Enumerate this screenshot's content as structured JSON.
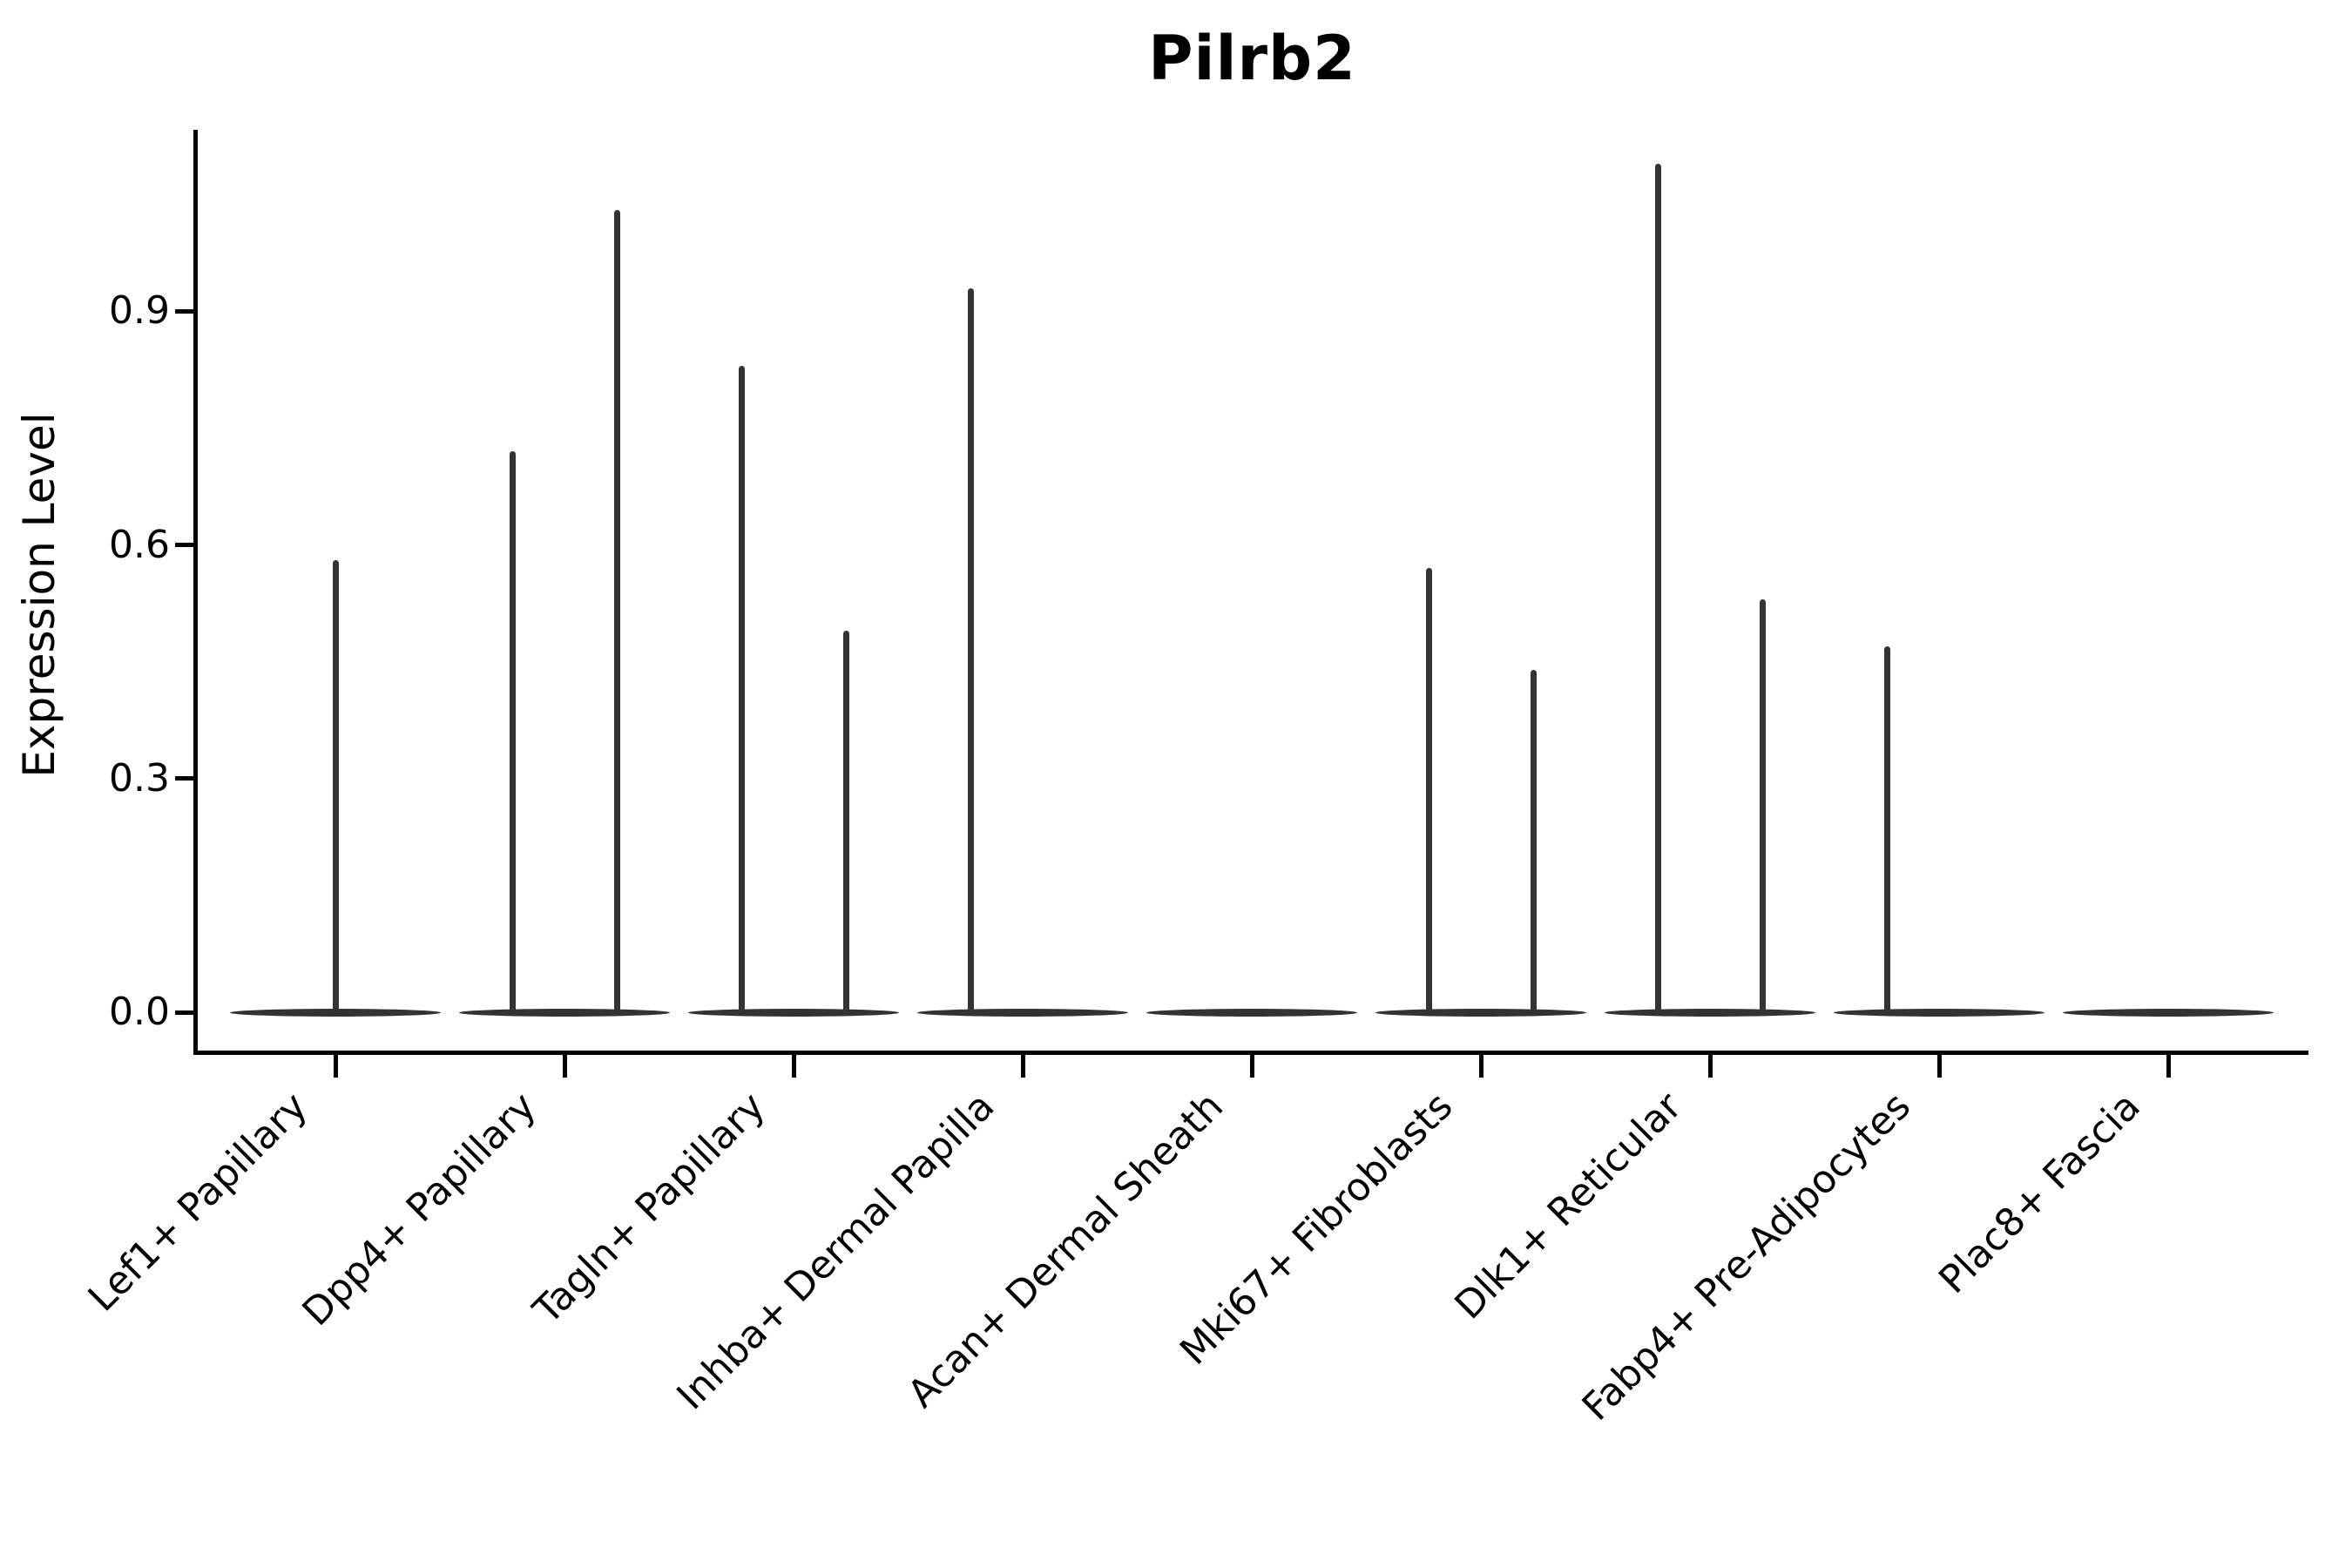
{
  "title": "Pilrb2",
  "y_axis": {
    "label": "Expression Level",
    "tick_labels": [
      "0.0",
      "0.3",
      "0.6",
      "0.9"
    ],
    "tick_values": [
      0.0,
      0.3,
      0.6,
      0.9
    ]
  },
  "colors": {
    "violin": "#333333",
    "axis": "#000000",
    "text": "#000000",
    "background": "#ffffff"
  },
  "chart_data": {
    "type": "violin",
    "title": "Pilrb2",
    "xlabel": "",
    "ylabel": "Expression Level",
    "ylim": [
      0,
      1.13
    ],
    "yticks": [
      0.0,
      0.3,
      0.6,
      0.9
    ],
    "grid": false,
    "legend": "none",
    "description": "Violin plot of Pilrb2 expression per fibroblast cluster; expression is near zero in all clusters so each violin collapses to a flat base at 0 with thin spikes reaching the maximum expression of each (sub)violin. Several categories contain two side-by-side sub-violins.",
    "categories": [
      "Lef1+ Papillary",
      "Dpp4+ Papillary",
      "Tagln+ Papillary",
      "Inhba+ Dermal Papilla",
      "Acan+ Dermal Sheath",
      "Mki67+ Fibroblasts",
      "Dlk1+ Reticular",
      "Fabp4+ Pre-Adipocytes",
      "Plac8+ Fascia"
    ],
    "violins": [
      {
        "category": "Lef1+ Papillary",
        "sub_violins": [
          {
            "position": "center",
            "max": 0.58
          }
        ]
      },
      {
        "category": "Dpp4+ Papillary",
        "sub_violins": [
          {
            "position": "left",
            "max": 0.72
          },
          {
            "position": "right",
            "max": 1.03
          }
        ]
      },
      {
        "category": "Tagln+ Papillary",
        "sub_violins": [
          {
            "position": "left",
            "max": 0.83
          },
          {
            "position": "right",
            "max": 0.49
          }
        ]
      },
      {
        "category": "Inhba+ Dermal Papilla",
        "sub_violins": [
          {
            "position": "left",
            "max": 0.93
          },
          {
            "position": "right",
            "max": 0.0
          }
        ]
      },
      {
        "category": "Acan+ Dermal Sheath",
        "sub_violins": [
          {
            "position": "center",
            "max": 0.0
          }
        ]
      },
      {
        "category": "Mki67+ Fibroblasts",
        "sub_violins": [
          {
            "position": "left",
            "max": 0.57
          },
          {
            "position": "right",
            "max": 0.44
          }
        ]
      },
      {
        "category": "Dlk1+ Reticular",
        "sub_violins": [
          {
            "position": "left",
            "max": 1.09
          },
          {
            "position": "right",
            "max": 0.53
          }
        ]
      },
      {
        "category": "Fabp4+ Pre-Adipocytes",
        "sub_violins": [
          {
            "position": "left",
            "max": 0.47
          },
          {
            "position": "right",
            "max": 0.0
          }
        ]
      },
      {
        "category": "Plac8+ Fascia",
        "sub_violins": [
          {
            "position": "center",
            "max": 0.0
          }
        ]
      }
    ]
  }
}
